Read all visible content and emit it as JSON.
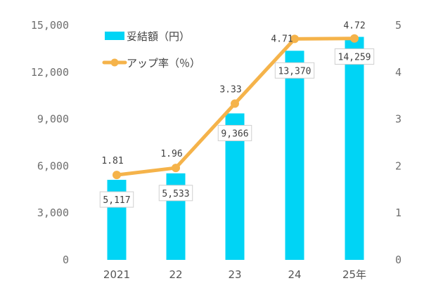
{
  "chart_data": {
    "type": "bar",
    "categories": [
      "2021",
      "22",
      "23",
      "24",
      "25年"
    ],
    "series": [
      {
        "name": "妥結額（円）",
        "type": "bar",
        "axis": "left",
        "values": [
          5117,
          5533,
          9366,
          13370,
          14259
        ]
      },
      {
        "name": "アップ率（％）",
        "type": "line",
        "axis": "right",
        "values": [
          1.81,
          1.96,
          3.33,
          4.71,
          4.72
        ]
      }
    ],
    "bar_labels": [
      "5,117",
      "5,533",
      "9,366",
      "13,370",
      "14,259"
    ],
    "line_labels": [
      "1.81",
      "1.96",
      "3.33",
      "4.71",
      "4.72"
    ],
    "y_left": {
      "ticks": [
        "0",
        "3,000",
        "6,000",
        "9,000",
        "12,000",
        "15,000"
      ],
      "values": [
        0,
        3000,
        6000,
        9000,
        12000,
        15000
      ],
      "ylim": [
        0,
        15000
      ]
    },
    "y_right": {
      "ticks": [
        "0",
        "1",
        "2",
        "3",
        "4",
        "5"
      ],
      "values": [
        0,
        1,
        2,
        3,
        4,
        5
      ],
      "ylim": [
        0,
        5
      ]
    },
    "grid": false,
    "legend_position": "top-left",
    "colors": {
      "bar": "#00d4f5",
      "line": "#f5b34a"
    }
  }
}
